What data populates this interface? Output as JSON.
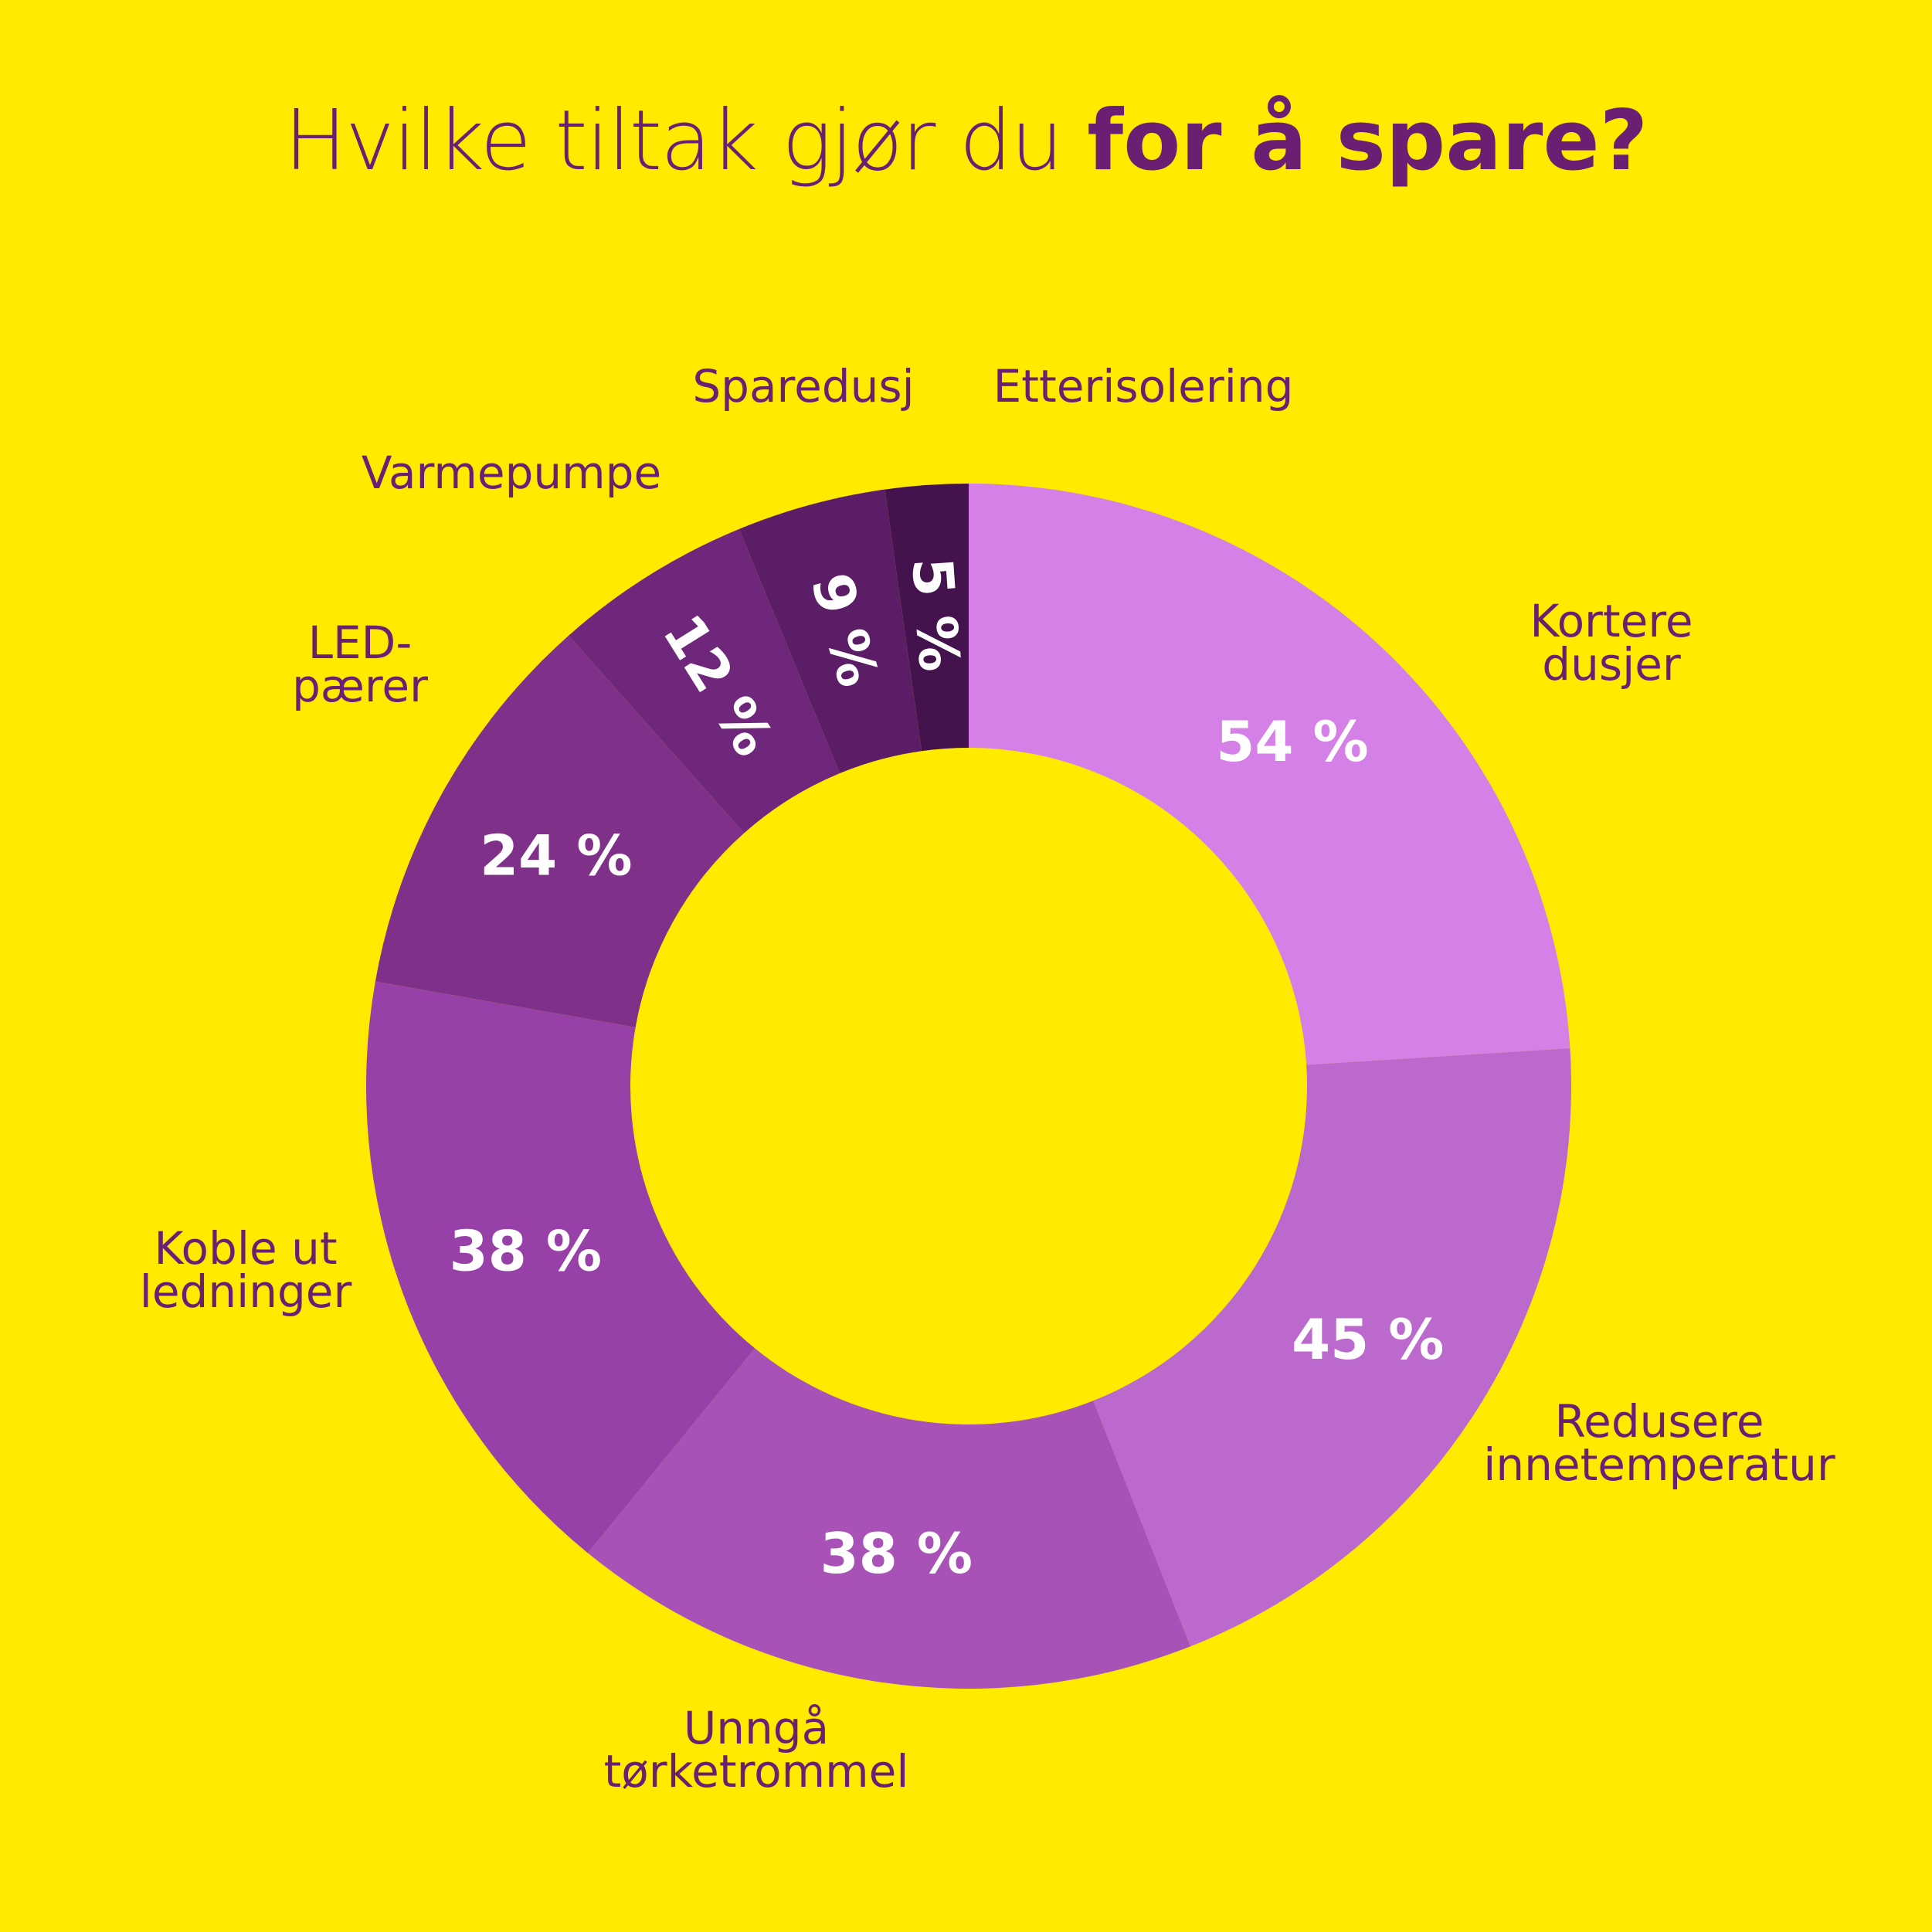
{
  "title": {
    "light": "Hvilke tiltak gjør du ",
    "bold": "for å spare?"
  },
  "chart_data": {
    "type": "donut",
    "title": "Hvilke tiltak gjør du for å spare?",
    "series": [
      {
        "label_lines": [
          "Kortere",
          "dusjer"
        ],
        "value": 54,
        "value_label": "54 %",
        "color": "#D580E6"
      },
      {
        "label_lines": [
          "Redusere",
          "innetemperatur"
        ],
        "value": 45,
        "value_label": "45 %",
        "color": "#BC69CD"
      },
      {
        "label_lines": [
          "Unngå",
          "tørketrommel"
        ],
        "value": 38,
        "value_label": "38 %",
        "color": "#A852B8"
      },
      {
        "label_lines": [
          "Koble ut",
          "ledninger"
        ],
        "value": 38,
        "value_label": "38 %",
        "color": "#9640A8"
      },
      {
        "label_lines": [
          "LED-",
          "pærer"
        ],
        "value": 24,
        "value_label": "24 %",
        "color": "#7F318A"
      },
      {
        "label_lines": [
          "Varmepumpe"
        ],
        "value": 12,
        "value_label": "12 %",
        "color": "#6E277A"
      },
      {
        "label_lines": [
          "Sparedusj"
        ],
        "value": 9,
        "value_label": "9 %",
        "color": "#5B1E66"
      },
      {
        "label_lines": [
          "Etterisolering"
        ],
        "value": 5,
        "value_label": "5 %",
        "color": "#44134D"
      }
    ],
    "background": "#FFEA00",
    "text_color": "#6B1F72"
  }
}
